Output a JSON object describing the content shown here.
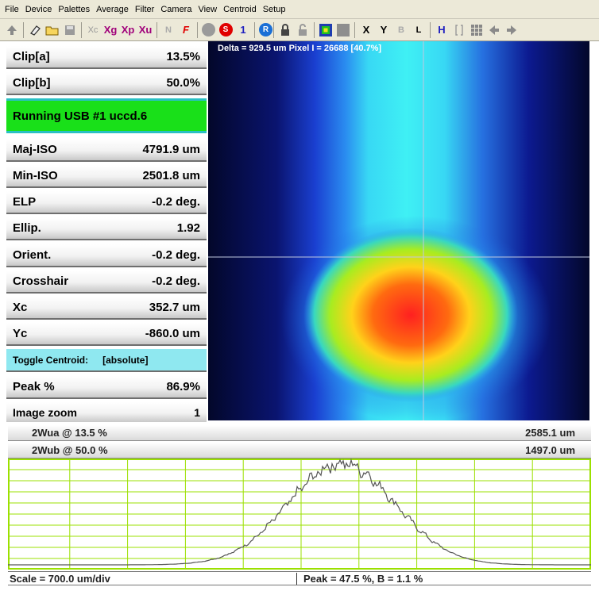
{
  "menu": [
    "File",
    "Device",
    "Palettes",
    "Average",
    "Filter",
    "Camera",
    "View",
    "Centroid",
    "Setup"
  ],
  "toolbar": {
    "xc": "Xc",
    "xg": "Xg",
    "xp": "Xp",
    "xu": "Xu",
    "n": "N",
    "f": "F",
    "s_btn": "S",
    "one": "1",
    "r_btn": "R",
    "x": "X",
    "y": "Y",
    "b": "B",
    "l": "L",
    "h": "H",
    "colors": {
      "red": "#e00000",
      "blue": "#0000ff",
      "green": "#009900",
      "accent": "#2020c0"
    }
  },
  "stats": {
    "clip_a": {
      "label": "Clip[a]",
      "value": "13.5%"
    },
    "clip_b": {
      "label": "Clip[b]",
      "value": "50.0%"
    },
    "status": "Running USB #1 uccd.6",
    "maj_iso": {
      "label": "Maj-ISO",
      "value": "4791.9 um"
    },
    "min_iso": {
      "label": "Min-ISO",
      "value": "2501.8 um"
    },
    "elp": {
      "label": "ELP",
      "value": "-0.2 deg."
    },
    "ellip": {
      "label": "Ellip.",
      "value": "1.92"
    },
    "orient": {
      "label": "Orient.",
      "value": "-0.2 deg."
    },
    "crosshair": {
      "label": "Crosshair",
      "value": "-0.2 deg."
    },
    "xc": {
      "label": "Xc",
      "value": "352.7 um"
    },
    "yc": {
      "label": "Yc",
      "value": "-860.0 um"
    },
    "toggle": {
      "label": "Toggle Centroid:",
      "value": "[absolute]"
    },
    "peak": {
      "label": "Peak %",
      "value": "86.9%"
    },
    "zoom": {
      "label": "Image zoom",
      "value": "1"
    }
  },
  "image": {
    "overlay": "Delta = 929.5 um Pixel I = 26688 [40.7%]"
  },
  "widths": {
    "wua": {
      "label": "2Wua @ 13.5 %",
      "value": "2585.1 um"
    },
    "wub": {
      "label": "2Wub @ 50.0 %",
      "value": "1497.0 um"
    }
  },
  "bottom": {
    "scale": "Scale = 700.0 um/div",
    "peak": "Peak = 47.5 %, B = 1.1 %"
  },
  "colors": {
    "status_green": "#19e019",
    "cyan": "#8fe8f0",
    "grid_green": "#9be000"
  }
}
